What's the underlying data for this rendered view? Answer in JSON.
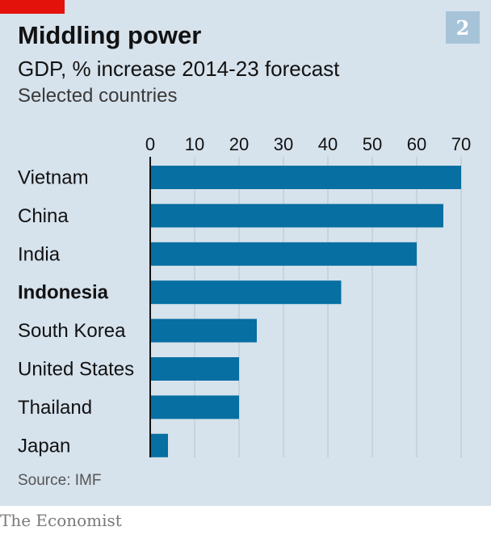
{
  "header": {
    "title": "Middling power",
    "badge": "2",
    "subtitle": "GDP, % increase 2014-23 forecast",
    "subsubtitle": "Selected countries"
  },
  "footer": {
    "source": "Source: IMF",
    "brand": "The Economist"
  },
  "colors": {
    "background": "#d6e2ec",
    "bar": "#076fa1",
    "accent_red": "#e3120b",
    "badge": "#a7c3d8"
  },
  "chart_data": {
    "type": "bar",
    "orientation": "horizontal",
    "title": "Middling power",
    "subtitle": "GDP, % increase 2014-23 forecast",
    "categories": [
      "Vietnam",
      "China",
      "India",
      "Indonesia",
      "South Korea",
      "United States",
      "Thailand",
      "Japan"
    ],
    "values": [
      70,
      66,
      60,
      43,
      24,
      20,
      20,
      4
    ],
    "highlighted_category": "Indonesia",
    "xlim": [
      0,
      70
    ],
    "xticks": [
      0,
      10,
      20,
      30,
      40,
      50,
      60,
      70
    ],
    "xaxis_position": "top",
    "grid": true,
    "xlabel": "",
    "ylabel": ""
  }
}
